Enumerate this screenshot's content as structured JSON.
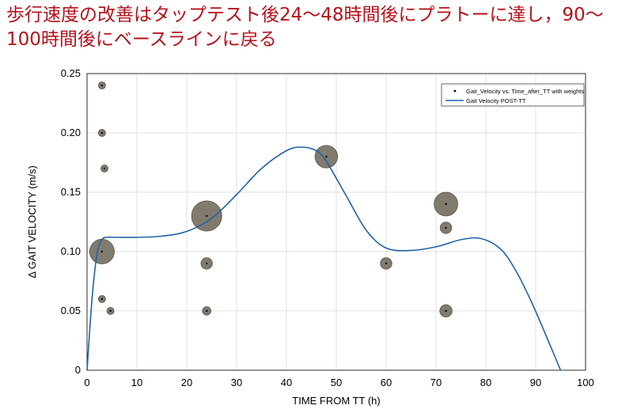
{
  "title": "歩行速度の改善はタップテスト後24～48時間後にプラトーに達し，90～100時間後にベースラインに戻る",
  "colors": {
    "title": "#b5121b",
    "bubble_fill": "#7a7466",
    "bubble_stroke": "#555044",
    "line": "#1f62a8"
  },
  "chart_data": {
    "type": "scatter",
    "xlabel": "TIME FROM TT (h)",
    "ylabel": "Δ GAIT VELOCITY (m/s)",
    "xlim": [
      0,
      100
    ],
    "ylim": [
      0,
      0.25
    ],
    "x_ticks": [
      0,
      10,
      20,
      30,
      40,
      50,
      60,
      70,
      80,
      90,
      100
    ],
    "y_ticks": [
      0,
      0.05,
      0.1,
      0.15,
      0.2,
      0.25
    ],
    "y_tick_labels": [
      "0",
      "0.05",
      "0.10",
      "0.15",
      "0.20",
      "0.25"
    ],
    "grid": true,
    "legend": {
      "position": "top-right",
      "entries": [
        "Gait_Velocity vs. Time_after_TT with weights",
        "Gait Velocity POST-TT"
      ]
    },
    "series": [
      {
        "name": "Gait_Velocity vs. Time_after_TT with weights",
        "type": "bubble",
        "points": [
          {
            "x": 3,
            "y": 0.24,
            "weight": 1
          },
          {
            "x": 3,
            "y": 0.2,
            "weight": 1
          },
          {
            "x": 3.5,
            "y": 0.17,
            "weight": 1
          },
          {
            "x": 3,
            "y": 0.06,
            "weight": 1
          },
          {
            "x": 4.7,
            "y": 0.05,
            "weight": 1
          },
          {
            "x": 3,
            "y": 0.1,
            "weight": 12
          },
          {
            "x": 24,
            "y": 0.13,
            "weight": 18
          },
          {
            "x": 24,
            "y": 0.09,
            "weight": 2.6
          },
          {
            "x": 24,
            "y": 0.05,
            "weight": 1.4
          },
          {
            "x": 48,
            "y": 0.18,
            "weight": 10
          },
          {
            "x": 60,
            "y": 0.09,
            "weight": 2.6
          },
          {
            "x": 72,
            "y": 0.14,
            "weight": 11
          },
          {
            "x": 72,
            "y": 0.12,
            "weight": 2.6
          },
          {
            "x": 72,
            "y": 0.05,
            "weight": 3.0
          }
        ]
      },
      {
        "name": "Gait Velocity POST-TT",
        "type": "line",
        "x": [
          0,
          1,
          2,
          3,
          4,
          6,
          10,
          15,
          20,
          25,
          30,
          35,
          40,
          43,
          46,
          48,
          52,
          56,
          60,
          65,
          70,
          75,
          79,
          83,
          86,
          89,
          92,
          95
        ],
        "y": [
          0,
          0.06,
          0.098,
          0.11,
          0.112,
          0.112,
          0.112,
          0.113,
          0.117,
          0.128,
          0.148,
          0.17,
          0.185,
          0.188,
          0.185,
          0.176,
          0.147,
          0.118,
          0.103,
          0.101,
          0.104,
          0.11,
          0.111,
          0.102,
          0.084,
          0.059,
          0.03,
          0.0
        ]
      }
    ]
  }
}
